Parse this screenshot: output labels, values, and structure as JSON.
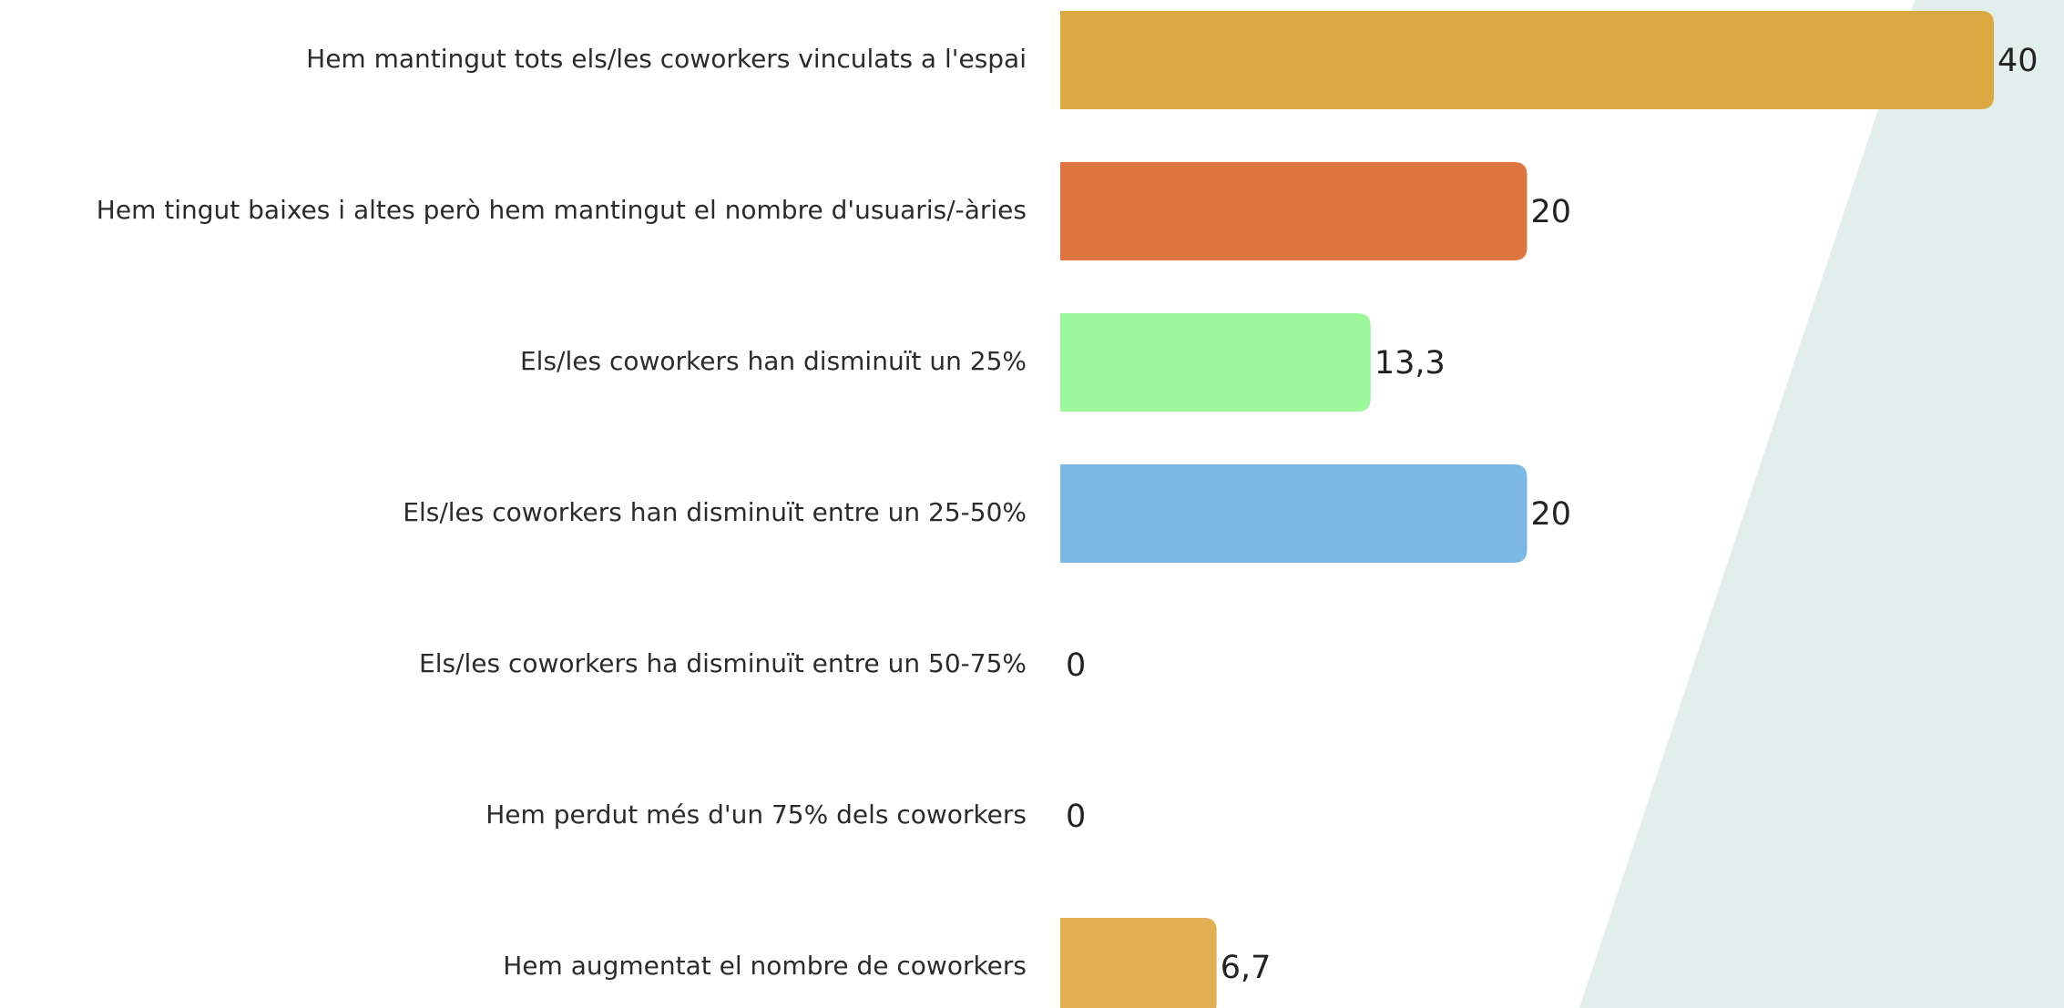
{
  "chart_data": {
    "type": "bar",
    "orientation": "horizontal",
    "categories": [
      "Hem mantingut tots els/les coworkers vinculats a l'espai",
      "Hem tingut baixes i altes però hem mantingut el nombre d'usuaris/-àries",
      "Els/les coworkers han disminuït un 25%",
      "Els/les coworkers han disminuït entre un 25-50%",
      "Els/les coworkers ha disminuït entre un 50-75%",
      "Hem perdut més d'un 75% dels coworkers",
      "Hem augmentat el nombre de coworkers"
    ],
    "values": [
      40,
      20,
      13.3,
      20,
      0,
      0,
      6.7
    ],
    "value_labels": [
      "40",
      "20",
      "13,3",
      "20",
      "0",
      "0",
      "6,7"
    ],
    "colors": [
      "#dba338",
      "#dc6d36",
      "#98f898",
      "#74b5e0",
      "#74b5e0",
      "#74b5e0",
      "#e0ab4c"
    ]
  }
}
